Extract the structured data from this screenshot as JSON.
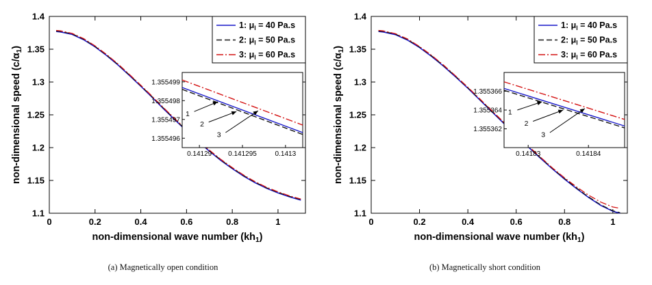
{
  "page": {
    "background": "#ffffff"
  },
  "figures": [
    {
      "caption": "(a) Magnetically open condition"
    },
    {
      "caption": "(b) Magnetically short condition"
    }
  ],
  "chart_data": [
    {
      "type": "line",
      "title": "",
      "xlabel": {
        "pre": "non-dimensional wave number (kh",
        "sub": "1",
        "post": ")"
      },
      "ylabel": {
        "pre": "non-dimensional speed (c/α",
        "sub": "1",
        "post": ")"
      },
      "xlim": [
        0,
        1.12
      ],
      "ylim": [
        1.1,
        1.4
      ],
      "xtick_vals": [
        0,
        0.2,
        0.4,
        0.6,
        0.8,
        1
      ],
      "xtick_labels": [
        "0",
        "0.2",
        "0.4",
        "0.6",
        "0.8",
        "1"
      ],
      "ytick_vals": [
        1.1,
        1.15,
        1.2,
        1.25,
        1.3,
        1.35,
        1.4
      ],
      "ytick_labels": [
        "1.1",
        "1.15",
        "1.2",
        "1.25",
        "1.3",
        "1.35",
        "1.4"
      ],
      "grid": false,
      "legend_position": "top-right",
      "x": [
        0.03,
        0.05,
        0.1,
        0.15,
        0.2,
        0.25,
        0.3,
        0.35,
        0.4,
        0.45,
        0.5,
        0.55,
        0.6,
        0.65,
        0.7,
        0.75,
        0.8,
        0.85,
        0.9,
        0.95,
        1.0,
        1.05,
        1.1
      ],
      "series": [
        {
          "label": {
            "pre": "1: μ",
            "sub": "l",
            "post": " = 40 Pa.s"
          },
          "color": "#1515c8",
          "style": "solid",
          "y": [
            1.377,
            1.3763,
            1.3725,
            1.3645,
            1.3535,
            1.3405,
            1.326,
            1.31,
            1.2935,
            1.2765,
            1.259,
            1.242,
            1.2255,
            1.2095,
            1.1945,
            1.1805,
            1.168,
            1.1565,
            1.1465,
            1.138,
            1.131,
            1.125,
            1.12
          ]
        },
        {
          "label": {
            "pre": "2: μ",
            "sub": "l",
            "post": " = 50 Pa.s"
          },
          "color": "#111111",
          "style": "dashed",
          "y": [
            1.3778,
            1.3771,
            1.3733,
            1.3653,
            1.3543,
            1.3413,
            1.3268,
            1.3108,
            1.2943,
            1.2773,
            1.2598,
            1.2428,
            1.2263,
            1.2103,
            1.1953,
            1.1813,
            1.1688,
            1.1573,
            1.1473,
            1.1388,
            1.1318,
            1.1258,
            1.1208
          ]
        },
        {
          "label": {
            "pre": "3: μ",
            "sub": "l",
            "post": " = 60 Pa.s"
          },
          "color": "#d41111",
          "style": "dashdot",
          "y": [
            1.3786,
            1.3779,
            1.3741,
            1.3661,
            1.3551,
            1.3421,
            1.3276,
            1.3116,
            1.2951,
            1.2781,
            1.2606,
            1.2436,
            1.2271,
            1.2111,
            1.1961,
            1.1821,
            1.1696,
            1.1581,
            1.1481,
            1.1396,
            1.1326,
            1.1266,
            1.1216
          ]
        }
      ],
      "inset": {
        "xlim": [
          0.141288,
          0.141302
        ],
        "ylim": [
          1.3554955,
          1.3554995
        ],
        "xtick_vals": [
          0.14129,
          0.141295,
          0.1413
        ],
        "xtick_labels": [
          "0.14129",
          "0.141295",
          "0.1413"
        ],
        "ytick_vals": [
          1.355496,
          1.355497,
          1.355498,
          1.355499
        ],
        "ytick_labels": [
          "1.355496",
          "1.355497",
          "1.355498",
          "1.355499"
        ],
        "lines": [
          {
            "series": 0,
            "pts": [
              [
                0.141288,
                1.3554987
              ],
              [
                0.141302,
                1.3554963
              ]
            ]
          },
          {
            "series": 1,
            "pts": [
              [
                0.141288,
                1.3554986
              ],
              [
                0.141302,
                1.3554962
              ]
            ]
          },
          {
            "series": 2,
            "pts": [
              [
                0.141288,
                1.3554991
              ],
              [
                0.141302,
                1.3554967
              ]
            ]
          }
        ],
        "annotations": [
          {
            "label": "1",
            "lx": 0.045,
            "ly": 0.58,
            "x1": 0.1,
            "y1": 0.52,
            "x2": 0.295,
            "y2": 0.39
          },
          {
            "label": "2",
            "lx": 0.165,
            "ly": 0.72,
            "x1": 0.22,
            "y1": 0.66,
            "x2": 0.45,
            "y2": 0.52
          },
          {
            "label": "3",
            "lx": 0.305,
            "ly": 0.86,
            "x1": 0.36,
            "y1": 0.8,
            "x2": 0.63,
            "y2": 0.51
          }
        ]
      }
    },
    {
      "type": "line",
      "title": "",
      "xlabel": {
        "pre": "non-dimensional wave number (kh",
        "sub": "1",
        "post": ")"
      },
      "ylabel": {
        "pre": "non-dimensional speed (c/α",
        "sub": "1",
        "post": ")"
      },
      "xlim": [
        0,
        1.06
      ],
      "ylim": [
        1.1,
        1.4
      ],
      "xtick_vals": [
        0,
        0.2,
        0.4,
        0.6,
        0.8,
        1
      ],
      "xtick_labels": [
        "0",
        "0.2",
        "0.4",
        "0.6",
        "0.8",
        "1"
      ],
      "ytick_vals": [
        1.1,
        1.15,
        1.2,
        1.25,
        1.3,
        1.35,
        1.4
      ],
      "ytick_labels": [
        "1.1",
        "1.15",
        "1.2",
        "1.25",
        "1.3",
        "1.35",
        "1.4"
      ],
      "grid": false,
      "legend_position": "top-right",
      "x": [
        0.03,
        0.05,
        0.1,
        0.15,
        0.2,
        0.25,
        0.3,
        0.35,
        0.4,
        0.45,
        0.5,
        0.55,
        0.6,
        0.65,
        0.7,
        0.75,
        0.8,
        0.85,
        0.9,
        0.95,
        1.0,
        1.03
      ],
      "series": [
        {
          "label": {
            "pre": "1: μ",
            "sub": "l",
            "post": " = 40 Pa.s"
          },
          "color": "#1515c8",
          "style": "solid",
          "y": [
            1.377,
            1.3763,
            1.3722,
            1.364,
            1.3525,
            1.339,
            1.324,
            1.3075,
            1.2905,
            1.2725,
            1.2545,
            1.2365,
            1.2185,
            1.201,
            1.184,
            1.1675,
            1.152,
            1.1375,
            1.124,
            1.112,
            1.103,
            1.1
          ]
        },
        {
          "label": {
            "pre": "2: μ",
            "sub": "l",
            "post": " = 50 Pa.s"
          },
          "color": "#111111",
          "style": "dashed",
          "y": [
            1.3778,
            1.3771,
            1.373,
            1.3648,
            1.3533,
            1.3398,
            1.3248,
            1.3083,
            1.2913,
            1.2733,
            1.2553,
            1.2373,
            1.2193,
            1.2018,
            1.1848,
            1.1683,
            1.1528,
            1.1383,
            1.1248,
            1.1128,
            1.1038,
            1.1008
          ]
        },
        {
          "label": {
            "pre": "3: μ",
            "sub": "l",
            "post": " = 60 Pa.s"
          },
          "color": "#d41111",
          "style": "dashdot",
          "y": [
            1.3786,
            1.3779,
            1.3738,
            1.3656,
            1.3541,
            1.3406,
            1.3256,
            1.3091,
            1.2921,
            1.2741,
            1.2561,
            1.2381,
            1.2201,
            1.2026,
            1.1856,
            1.1691,
            1.154,
            1.14,
            1.1275,
            1.117,
            1.1095,
            1.1075
          ]
        }
      ],
      "inset": {
        "xlim": [
          0.141826,
          0.141846
        ],
        "ylim": [
          1.35536,
          1.355368
        ],
        "xtick_vals": [
          0.14183,
          0.14184
        ],
        "xtick_labels": [
          "0.14183",
          "0.14184"
        ],
        "ytick_vals": [
          1.355362,
          1.355364,
          1.355366
        ],
        "ytick_labels": [
          "1.355362",
          "1.355364",
          "1.355366"
        ],
        "lines": [
          {
            "series": 0,
            "pts": [
              [
                0.141826,
                1.3553663
              ],
              [
                0.141846,
                1.3553623
              ]
            ]
          },
          {
            "series": 1,
            "pts": [
              [
                0.141826,
                1.3553661
              ],
              [
                0.141846,
                1.3553621
              ]
            ]
          },
          {
            "series": 2,
            "pts": [
              [
                0.141826,
                1.355367
              ],
              [
                0.141846,
                1.355363
              ]
            ]
          }
        ],
        "annotations": [
          {
            "label": "1",
            "lx": 0.05,
            "ly": 0.56,
            "x1": 0.11,
            "y1": 0.5,
            "x2": 0.315,
            "y2": 0.39
          },
          {
            "label": "2",
            "lx": 0.185,
            "ly": 0.71,
            "x1": 0.24,
            "y1": 0.65,
            "x2": 0.49,
            "y2": 0.5
          },
          {
            "label": "3",
            "lx": 0.325,
            "ly": 0.86,
            "x1": 0.38,
            "y1": 0.8,
            "x2": 0.67,
            "y2": 0.48
          }
        ]
      }
    }
  ]
}
